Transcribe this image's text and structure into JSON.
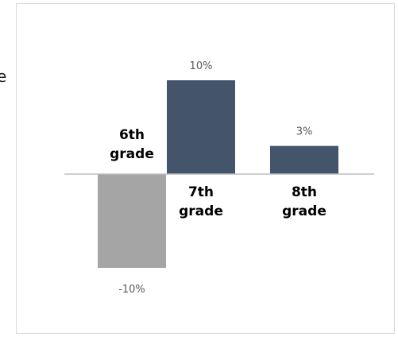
{
  "edge_text": "e",
  "chart_data": {
    "type": "bar",
    "title": "",
    "xlabel": "",
    "ylabel": "",
    "categories": [
      [
        "6th",
        "grade"
      ],
      [
        "7th",
        "grade"
      ],
      [
        "8th",
        "grade"
      ]
    ],
    "values": [
      -10,
      10,
      3
    ],
    "data_labels": [
      "-10%",
      "10%",
      "3%"
    ],
    "ylim": [
      -14,
      14
    ],
    "grid": false,
    "legend": "none",
    "colors": {
      "positive": "#44546a",
      "negative": "#a5a5a5",
      "axis": "#bfbfbf",
      "data_label": "#595959",
      "category_label": "#000000"
    }
  }
}
